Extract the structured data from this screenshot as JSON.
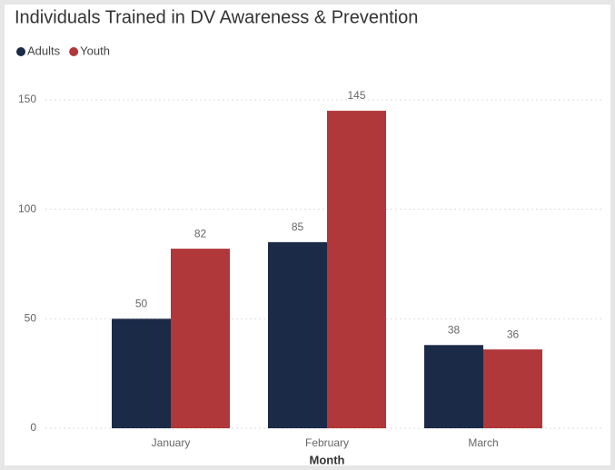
{
  "chart_data": {
    "type": "bar",
    "title": "Individuals Trained in DV Awareness & Prevention",
    "x_label": "Month",
    "categories": [
      "January",
      "February",
      "March"
    ],
    "series": [
      {
        "name": "Adults",
        "color": "#1b2a47",
        "values": [
          50,
          85,
          38
        ]
      },
      {
        "name": "Youth",
        "color": "#b0373a",
        "values": [
          82,
          145,
          36
        ]
      }
    ],
    "ylim": [
      0,
      150
    ],
    "yticks": [
      0,
      50,
      100,
      150
    ],
    "grid": true,
    "legend": "top-left",
    "data_labels": true
  }
}
